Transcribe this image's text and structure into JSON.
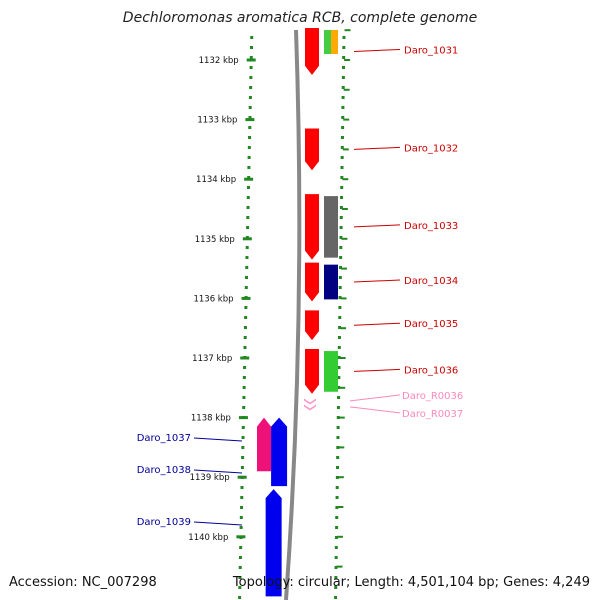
{
  "title": "Dechloromonas aromatica RCB, complete genome",
  "footer": {
    "accession": "Accession: NC_007298",
    "summary": "Topology: circular; Length: 4,501,104 bp; Genes: 4,249"
  },
  "colors": {
    "gene_forward": "#ff0000",
    "gene_reverse": "#0000ee",
    "rna": "#ff99cc",
    "ruler_ticks": "#228822",
    "backbone": "#888888"
  },
  "ruler": {
    "unit": "kbp",
    "ticks": [
      {
        "label": "1132 kbp",
        "kbp": 1132
      },
      {
        "label": "1133 kbp",
        "kbp": 1133
      },
      {
        "label": "1134 kbp",
        "kbp": 1134
      },
      {
        "label": "1135 kbp",
        "kbp": 1135
      },
      {
        "label": "1136 kbp",
        "kbp": 1136
      },
      {
        "label": "1137 kbp",
        "kbp": 1137
      },
      {
        "label": "1138 kbp",
        "kbp": 1138
      },
      {
        "label": "1139 kbp",
        "kbp": 1139
      },
      {
        "label": "1140 kbp",
        "kbp": 1140
      }
    ]
  },
  "genes": [
    {
      "name": "Daro_1031",
      "strand": "+",
      "start_kbp": 1131.4,
      "end_kbp": 1132.25,
      "color": "#ff0000",
      "label_color": "#cc0000",
      "cog": [
        "#44cc44",
        "#ffaa00"
      ]
    },
    {
      "name": "Daro_1032",
      "strand": "+",
      "start_kbp": 1133.15,
      "end_kbp": 1133.85,
      "color": "#ff0000",
      "label_color": "#cc0000"
    },
    {
      "name": "Daro_1033",
      "strand": "+",
      "start_kbp": 1134.25,
      "end_kbp": 1135.35,
      "color": "#ff0000",
      "label_color": "#cc0000",
      "cog": [
        "#666666"
      ]
    },
    {
      "name": "Daro_1034",
      "strand": "+",
      "start_kbp": 1135.4,
      "end_kbp": 1136.05,
      "color": "#ff0000",
      "label_color": "#cc0000",
      "cog": [
        "#000080"
      ]
    },
    {
      "name": "Daro_1035",
      "strand": "+",
      "start_kbp": 1136.2,
      "end_kbp": 1136.7,
      "color": "#ff0000",
      "label_color": "#cc0000"
    },
    {
      "name": "Daro_1036",
      "strand": "+",
      "start_kbp": 1136.85,
      "end_kbp": 1137.6,
      "color": "#ff0000",
      "label_color": "#cc0000",
      "cog": [
        "#33cc33"
      ]
    },
    {
      "name": "Daro_R0036",
      "strand": "+",
      "start_kbp": 1137.68,
      "end_kbp": 1137.76,
      "color": "#ff99cc",
      "label_color": "#ff88bb",
      "type": "rna"
    },
    {
      "name": "Daro_R0037",
      "strand": "+",
      "start_kbp": 1137.78,
      "end_kbp": 1137.86,
      "color": "#ff99cc",
      "label_color": "#ff88bb",
      "type": "rna"
    },
    {
      "name": "Daro_1037",
      "strand": "-",
      "start_kbp": 1138.0,
      "end_kbp": 1138.9,
      "color": "#ee1177",
      "label_color": "#000099"
    },
    {
      "name": "Daro_1038",
      "strand": "-",
      "start_kbp": 1138.0,
      "end_kbp": 1139.15,
      "color": "#0000ee",
      "label_color": "#000099"
    },
    {
      "name": "Daro_1039",
      "strand": "-",
      "start_kbp": 1139.2,
      "end_kbp": 1141.0,
      "color": "#0000ee",
      "label_color": "#000099"
    }
  ]
}
